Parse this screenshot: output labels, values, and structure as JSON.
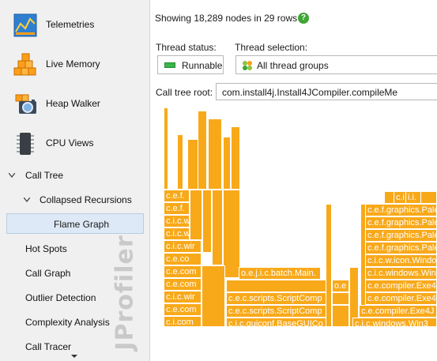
{
  "sidebar": {
    "telemetries": "Telemetries",
    "live_memory": "Live Memory",
    "heap_walker": "Heap Walker",
    "cpu_views": "CPU Views",
    "call_tree": "Call Tree",
    "collapsed_recursions": "Collapsed Recursions",
    "flame_graph": "Flame Graph",
    "hot_spots": "Hot Spots",
    "call_graph": "Call Graph",
    "outlier_detection": "Outlier Detection",
    "complexity_analysis": "Complexity Analysis",
    "call_tracer": "Call Tracer",
    "watermark": "JProfiler"
  },
  "main": {
    "summary": "Showing 18,289 nodes in 29 rows",
    "help_icon": "?",
    "thread_status_label": "Thread status:",
    "thread_status_value": "Runnable",
    "thread_selection_label": "Thread selection:",
    "thread_selection_value": "All thread groups",
    "call_tree_root_label": "Call tree root:",
    "call_tree_root_value": "com.install4j.Install4JCompiler.compileMe"
  },
  "flame_labels": {
    "cef": "c.e.f.",
    "cef2": "c.e.f.",
    "cicw": "c.i.c.w",
    "cicwir": "c.i.c.wir",
    "cicw2": "c.i.c.wir",
    "ceco": "c.e.co",
    "cecom": "c.e.com",
    "cecom2": "c.e.com",
    "cecom3": "c.e.com",
    "cicwi": "c.i.c.wi",
    "cicom": "c.i.com",
    "batch": "o.e.j.i.c.batch.Main.",
    "scripts1": "c.e.c.scripts.ScriptComp",
    "scripts2": "c.e.c.scripts.ScriptComp",
    "guiconf": "c.i.c.guiconf.BaseGUICo",
    "guiconf2": "c.i.c.guiconf.BaseGUICo",
    "ceco2": "o.e",
    "ceco3": "c.e.c",
    "rg1": "c.e.f.graphics.Pale",
    "rg2": "c.e.f.graphics.Pale",
    "rg3": "c.e.f.graphics.Pale",
    "rg4": "c.e.f.graphics.Pale",
    "rw1": "c.i.c.w.icon.Windo",
    "rw2": "c.i.c.windows.Win",
    "rex1": "c.e.compiler.Exe4",
    "rex2": "c.e.compiler.Exe4J",
    "rwin3": "c.i.c.windows.Win3",
    "rcec": "c.e.c",
    "rce": "c.e.",
    "top1": "c.i.i",
    "top2": "i.i."
  },
  "colors": {
    "flame": "#f8a91a",
    "sidebar_bg": "#f0f0f0",
    "selection_bg": "#dde9f6",
    "runnable_green": "#39b54a",
    "help_green": "#3fa535"
  }
}
